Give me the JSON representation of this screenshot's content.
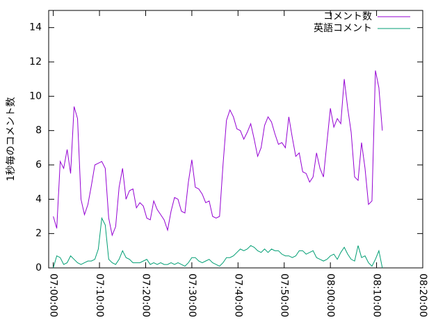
{
  "chart_data": {
    "type": "line",
    "y_label": "1秒毎のコメント数",
    "x": [
      "07:00:00",
      "07:00:45",
      "07:01:30",
      "07:02:15",
      "07:03:00",
      "07:03:45",
      "07:04:30",
      "07:05:15",
      "07:06:00",
      "07:06:45",
      "07:07:30",
      "07:08:15",
      "07:09:00",
      "07:09:45",
      "07:10:30",
      "07:11:15",
      "07:12:00",
      "07:12:45",
      "07:13:30",
      "07:14:15",
      "07:15:00",
      "07:15:45",
      "07:16:30",
      "07:17:15",
      "07:18:00",
      "07:18:45",
      "07:19:30",
      "07:20:15",
      "07:21:00",
      "07:21:45",
      "07:22:30",
      "07:23:15",
      "07:24:00",
      "07:24:45",
      "07:25:30",
      "07:26:15",
      "07:27:00",
      "07:27:45",
      "07:28:30",
      "07:29:15",
      "07:30:00",
      "07:30:45",
      "07:31:30",
      "07:32:15",
      "07:33:00",
      "07:33:45",
      "07:34:30",
      "07:35:15",
      "07:36:00",
      "07:36:45",
      "07:37:30",
      "07:38:15",
      "07:39:00",
      "07:39:45",
      "07:40:30",
      "07:41:15",
      "07:42:00",
      "07:42:45",
      "07:43:30",
      "07:44:15",
      "07:45:00",
      "07:45:45",
      "07:46:30",
      "07:47:15",
      "07:48:00",
      "07:48:45",
      "07:49:30",
      "07:50:15",
      "07:51:00",
      "07:51:45",
      "07:52:30",
      "07:53:15",
      "07:54:00",
      "07:54:45",
      "07:55:30",
      "07:56:15",
      "07:57:00",
      "07:57:45",
      "07:58:30",
      "07:59:15",
      "08:00:00",
      "08:00:45",
      "08:01:30",
      "08:02:15",
      "08:03:00",
      "08:03:45",
      "08:04:30",
      "08:05:15",
      "08:06:00",
      "08:06:45",
      "08:07:30",
      "08:08:15",
      "08:09:00",
      "08:09:45",
      "08:10:30",
      "08:11:15"
    ],
    "series": [
      {
        "name": "コメント数",
        "color": "#9400d3",
        "values": [
          3.0,
          2.3,
          6.2,
          5.8,
          6.9,
          5.5,
          9.4,
          8.7,
          4.0,
          3.1,
          3.7,
          4.8,
          6.0,
          6.1,
          6.2,
          5.8,
          2.9,
          1.9,
          2.4,
          4.7,
          5.8,
          4.0,
          4.5,
          4.6,
          3.5,
          3.8,
          3.6,
          2.9,
          2.8,
          3.9,
          3.4,
          3.1,
          2.8,
          2.2,
          3.3,
          4.1,
          4.0,
          3.3,
          3.2,
          5.0,
          6.3,
          4.7,
          4.6,
          4.3,
          3.8,
          3.9,
          3.0,
          2.9,
          3.0,
          6.0,
          8.6,
          9.2,
          8.8,
          8.1,
          8.0,
          7.5,
          7.9,
          8.4,
          7.5,
          6.5,
          7.0,
          8.3,
          8.8,
          8.5,
          7.8,
          7.2,
          7.3,
          7.0,
          8.8,
          7.6,
          6.5,
          6.7,
          5.6,
          5.5,
          5.0,
          5.3,
          6.7,
          5.8,
          5.3,
          7.3,
          9.3,
          8.2,
          8.7,
          8.4,
          11.0,
          9.3,
          7.9,
          5.3,
          5.1,
          7.3,
          5.8,
          3.7,
          3.9,
          11.5,
          10.5,
          8.0
        ]
      },
      {
        "name": "英語コメント",
        "color": "#009e73",
        "values": [
          0.0,
          0.7,
          0.6,
          0.2,
          0.3,
          0.7,
          0.5,
          0.3,
          0.2,
          0.3,
          0.4,
          0.4,
          0.5,
          1.1,
          2.9,
          2.5,
          0.5,
          0.3,
          0.2,
          0.5,
          1.0,
          0.6,
          0.5,
          0.3,
          0.3,
          0.3,
          0.4,
          0.5,
          0.2,
          0.3,
          0.2,
          0.3,
          0.2,
          0.2,
          0.3,
          0.2,
          0.3,
          0.2,
          0.1,
          0.3,
          0.6,
          0.6,
          0.4,
          0.3,
          0.4,
          0.5,
          0.3,
          0.2,
          0.1,
          0.3,
          0.6,
          0.6,
          0.7,
          0.9,
          1.1,
          1.0,
          1.1,
          1.3,
          1.2,
          1.0,
          0.9,
          1.1,
          0.9,
          1.1,
          1.0,
          1.0,
          0.8,
          0.7,
          0.7,
          0.6,
          0.7,
          1.0,
          1.0,
          0.8,
          0.9,
          1.0,
          0.6,
          0.5,
          0.4,
          0.5,
          0.7,
          0.8,
          0.5,
          0.9,
          1.2,
          0.8,
          0.5,
          0.4,
          1.3,
          0.6,
          0.7,
          0.3,
          0.1,
          0.5,
          1.0,
          0.0
        ]
      }
    ],
    "xlim": [
      "06:59:00",
      "08:20:00"
    ],
    "xticks": [
      "07:00:00",
      "07:10:00",
      "07:20:00",
      "07:30:00",
      "07:40:00",
      "07:50:00",
      "08:00:00",
      "08:10:00",
      "08:20:00"
    ],
    "ylim": [
      0,
      15
    ],
    "yticks": [
      0,
      2,
      4,
      6,
      8,
      10,
      12,
      14
    ],
    "legend": "top-right"
  }
}
